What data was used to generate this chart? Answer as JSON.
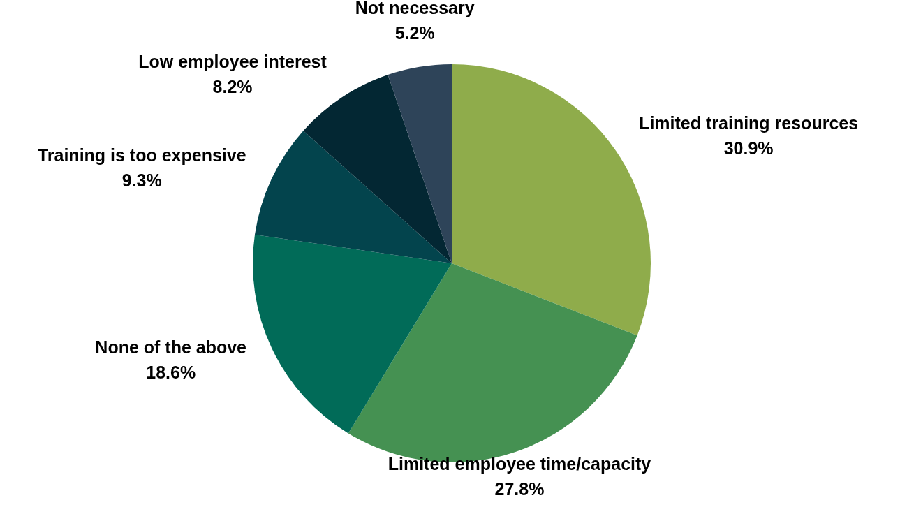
{
  "chart_data": {
    "type": "pie",
    "categories": [
      "Limited training resources",
      "Limited employee time/capacity",
      "None of the above",
      "Training is too expensive",
      "Low employee interest",
      "Not necessary"
    ],
    "values": [
      30.9,
      27.8,
      18.6,
      9.3,
      8.2,
      5.2
    ],
    "value_labels": [
      "30.9%",
      "27.8%",
      "18.6%",
      "9.3%",
      "8.2%",
      "5.2%"
    ],
    "colors": [
      "#8fac4b",
      "#459152",
      "#016b58",
      "#03444d",
      "#032733",
      "#2e4459"
    ],
    "legend": false
  }
}
